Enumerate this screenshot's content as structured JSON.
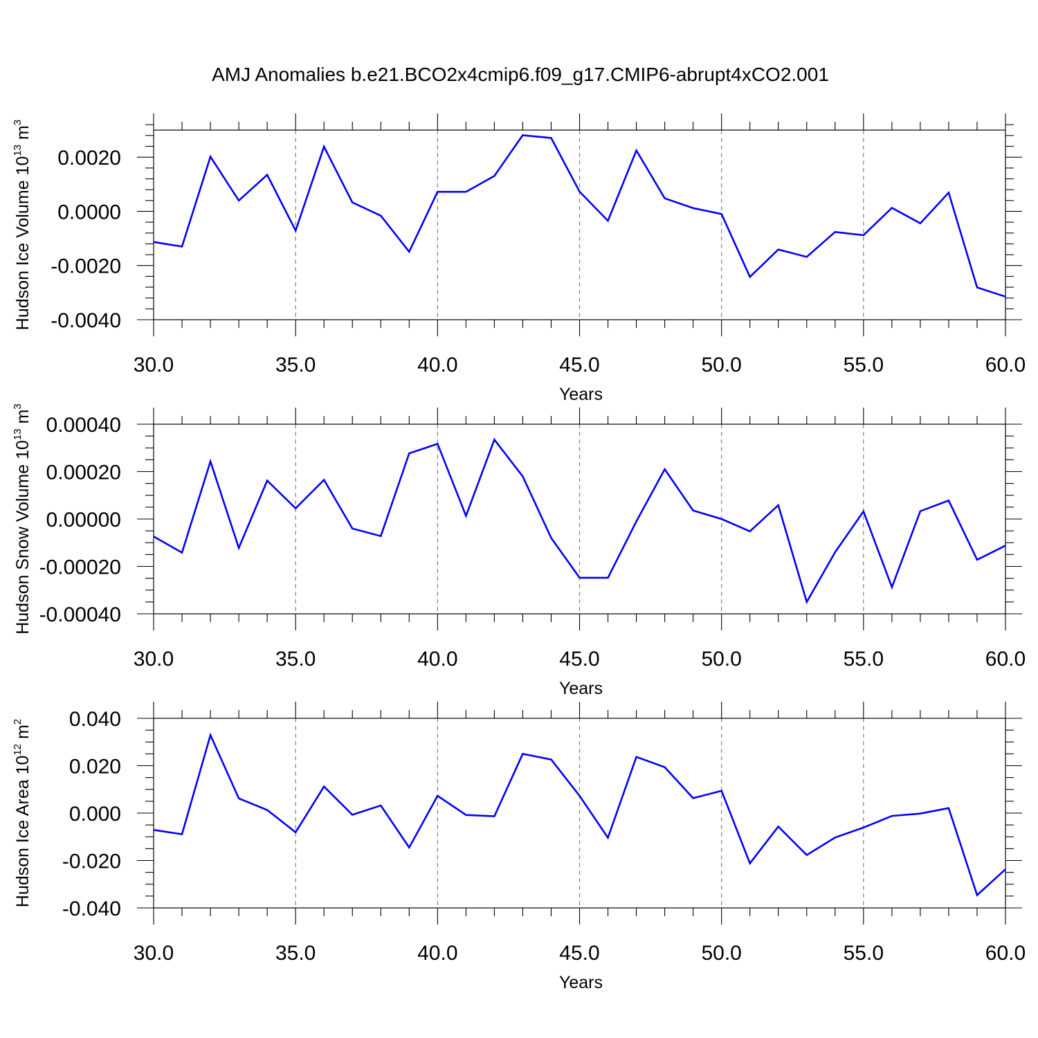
{
  "title": "AMJ Anomalies b.e21.BCO2x4cmip6.f09_g17.CMIP6-abrupt4xCO2.001",
  "colors": {
    "series": "#0000ff",
    "grid": "#808080",
    "axis": "#000000"
  },
  "chart_data": [
    {
      "type": "line",
      "xlabel": "Years",
      "ylabel": {
        "text": "Hudson Ice Volume 10",
        "sup": "13",
        "unit": " m",
        "unit_sup": "3"
      },
      "xlim": [
        30,
        60
      ],
      "ylim": [
        -0.004,
        0.003
      ],
      "x_ticks": [
        30,
        35,
        40,
        45,
        50,
        55,
        60
      ],
      "x_tick_labels": [
        "30.0",
        "35.0",
        "40.0",
        "45.0",
        "50.0",
        "55.0",
        "60.0"
      ],
      "x_minor_step": 1,
      "y_ticks": [
        -0.004,
        -0.002,
        0.0,
        0.002
      ],
      "y_tick_labels": [
        "-0.0040",
        "-0.0020",
        "0.0000",
        "0.0020"
      ],
      "y_minor_step": 0.0004,
      "grid": "vertical dashed at major x ticks",
      "x": [
        30,
        31,
        32,
        33,
        34,
        35,
        36,
        37,
        38,
        39,
        40,
        41,
        42,
        43,
        44,
        45,
        46,
        47,
        48,
        49,
        50,
        51,
        52,
        53,
        54,
        55,
        56,
        57,
        58,
        59,
        60
      ],
      "series": [
        {
          "values": [
            -0.00113,
            -0.0013,
            0.00202,
            0.0004,
            0.00135,
            -0.00071,
            0.00239,
            0.00033,
            -0.00016,
            -0.00149,
            0.00072,
            0.00072,
            0.00131,
            0.00281,
            0.00271,
            0.00073,
            -0.00035,
            0.00225,
            0.00048,
            0.00012,
            -0.0001,
            -0.00242,
            -0.00141,
            -0.00168,
            -0.00076,
            -0.00088,
            0.00013,
            -0.00044,
            0.00069,
            -0.00281,
            -0.00315
          ]
        }
      ]
    },
    {
      "type": "line",
      "xlabel": "Years",
      "ylabel": {
        "text": "Hudson Snow Volume 10",
        "sup": "13",
        "unit": " m",
        "unit_sup": "3"
      },
      "xlim": [
        30,
        60
      ],
      "ylim": [
        -0.0004,
        0.0004
      ],
      "x_ticks": [
        30,
        35,
        40,
        45,
        50,
        55,
        60
      ],
      "x_tick_labels": [
        "30.0",
        "35.0",
        "40.0",
        "45.0",
        "50.0",
        "55.0",
        "60.0"
      ],
      "x_minor_step": 1,
      "y_ticks": [
        -0.0004,
        -0.0002,
        0.0,
        0.0002,
        0.0004
      ],
      "y_tick_labels": [
        "-0.00040",
        "-0.00020",
        "0.00000",
        "0.00020",
        "0.00040"
      ],
      "y_minor_step": 5e-05,
      "grid": "vertical dashed at major x ticks",
      "x": [
        30,
        31,
        32,
        33,
        34,
        35,
        36,
        37,
        38,
        39,
        40,
        41,
        42,
        43,
        44,
        45,
        46,
        47,
        48,
        49,
        50,
        51,
        52,
        53,
        54,
        55,
        56,
        57,
        58,
        59,
        60
      ],
      "series": [
        {
          "values": [
            -7.4e-05,
            -0.000142,
            0.000243,
            -0.000122,
            0.000162,
            4.5e-05,
            0.000165,
            -4e-05,
            -7.2e-05,
            0.000277,
            0.000317,
            1.3e-05,
            0.000335,
            0.00018,
            -8e-05,
            -0.000248,
            -0.000248,
            -1e-05,
            0.00021,
            3.6e-05,
            0.0,
            -5.2e-05,
            5.8e-05,
            -0.00035,
            -0.00014,
            3.2e-05,
            -0.000288,
            3.3e-05,
            7.8e-05,
            -0.000172,
            -0.000112
          ]
        }
      ]
    },
    {
      "type": "line",
      "xlabel": "Years",
      "ylabel": {
        "text": "Hudson Ice Area 10",
        "sup": "12",
        "unit": " m",
        "unit_sup": "2"
      },
      "xlim": [
        30,
        60
      ],
      "ylim": [
        -0.04,
        0.04
      ],
      "x_ticks": [
        30,
        35,
        40,
        45,
        50,
        55,
        60
      ],
      "x_tick_labels": [
        "30.0",
        "35.0",
        "40.0",
        "45.0",
        "50.0",
        "55.0",
        "60.0"
      ],
      "x_minor_step": 1,
      "y_ticks": [
        -0.04,
        -0.02,
        0.0,
        0.02,
        0.04
      ],
      "y_tick_labels": [
        "-0.040",
        "-0.020",
        "0.000",
        "0.020",
        "0.040"
      ],
      "y_minor_step": 0.005,
      "grid": "vertical dashed at major x ticks",
      "x": [
        30,
        31,
        32,
        33,
        34,
        35,
        36,
        37,
        38,
        39,
        40,
        41,
        42,
        43,
        44,
        45,
        46,
        47,
        48,
        49,
        50,
        51,
        52,
        53,
        54,
        55,
        56,
        57,
        58,
        59,
        60
      ],
      "series": [
        {
          "values": [
            -0.0071,
            -0.0089,
            0.0329,
            0.0062,
            0.0013,
            -0.0081,
            0.0112,
            -0.0007,
            0.0032,
            -0.0145,
            0.0073,
            -0.0008,
            -0.0013,
            0.025,
            0.0226,
            0.0073,
            -0.0104,
            0.0237,
            0.0194,
            0.0063,
            0.0094,
            -0.0212,
            -0.0057,
            -0.0177,
            -0.0103,
            -0.0061,
            -0.0012,
            -0.0002,
            0.0021,
            -0.0346,
            -0.0237
          ]
        }
      ]
    }
  ]
}
